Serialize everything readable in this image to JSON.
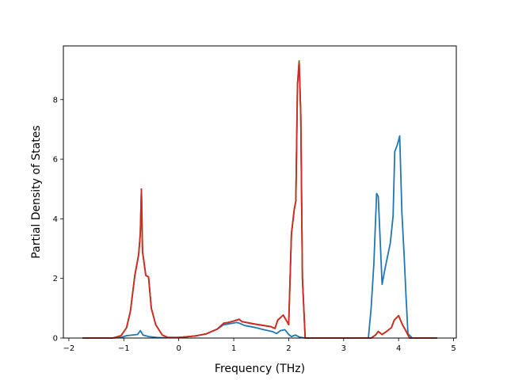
{
  "chart_data": {
    "type": "line",
    "title": "",
    "xlabel": "Frequency (THz)",
    "ylabel": "Partial Density of States",
    "xlim": [
      -2.1,
      5.05
    ],
    "ylim": [
      0,
      9.8
    ],
    "xticks": [
      -2,
      -1,
      0,
      1,
      2,
      3,
      4,
      5
    ],
    "xtick_labels": [
      "−2",
      "−1",
      "0",
      "1",
      "2",
      "3",
      "4",
      "5"
    ],
    "yticks": [
      0,
      2,
      4,
      6,
      8
    ],
    "ytick_labels": [
      "0",
      "2",
      "4",
      "6",
      "8"
    ],
    "grid": false,
    "legend": "none",
    "series": [
      {
        "color": "#1f77b4",
        "points": [
          [
            -1.75,
            0
          ],
          [
            -1.2,
            0
          ],
          [
            -1.05,
            0.02
          ],
          [
            -0.95,
            0.08
          ],
          [
            -0.85,
            0.1
          ],
          [
            -0.75,
            0.12
          ],
          [
            -0.7,
            0.25
          ],
          [
            -0.65,
            0.1
          ],
          [
            -0.55,
            0.05
          ],
          [
            -0.4,
            0.02
          ],
          [
            -0.25,
            0.01
          ],
          [
            0,
            0.02
          ],
          [
            0.3,
            0.07
          ],
          [
            0.5,
            0.14
          ],
          [
            0.7,
            0.3
          ],
          [
            0.82,
            0.45
          ],
          [
            0.9,
            0.47
          ],
          [
            1.05,
            0.52
          ],
          [
            1.1,
            0.5
          ],
          [
            1.2,
            0.42
          ],
          [
            1.4,
            0.35
          ],
          [
            1.55,
            0.28
          ],
          [
            1.7,
            0.22
          ],
          [
            1.78,
            0.15
          ],
          [
            1.85,
            0.25
          ],
          [
            1.93,
            0.28
          ],
          [
            2.0,
            0.12
          ],
          [
            2.05,
            0.05
          ],
          [
            2.12,
            0.1
          ],
          [
            2.2,
            0.03
          ],
          [
            2.3,
            0
          ],
          [
            3.45,
            0
          ],
          [
            3.5,
            1.0
          ],
          [
            3.55,
            2.5
          ],
          [
            3.6,
            4.85
          ],
          [
            3.63,
            4.75
          ],
          [
            3.7,
            1.8
          ],
          [
            3.75,
            2.3
          ],
          [
            3.85,
            3.2
          ],
          [
            3.9,
            4.1
          ],
          [
            3.93,
            6.25
          ],
          [
            3.98,
            6.5
          ],
          [
            4.02,
            6.78
          ],
          [
            4.06,
            4.2
          ],
          [
            4.1,
            2.8
          ],
          [
            4.13,
            1.6
          ],
          [
            4.17,
            0.15
          ],
          [
            4.25,
            0
          ],
          [
            4.7,
            0
          ]
        ]
      },
      {
        "color": "#ff7f0e",
        "points": [
          [
            -1.75,
            0
          ],
          [
            -1.2,
            0
          ],
          [
            -1.05,
            0.08
          ],
          [
            -0.95,
            0.35
          ],
          [
            -0.88,
            0.9
          ],
          [
            -0.8,
            2.1
          ],
          [
            -0.73,
            2.8
          ],
          [
            -0.7,
            3.5
          ],
          [
            -0.68,
            5.0
          ],
          [
            -0.66,
            2.9
          ],
          [
            -0.6,
            2.1
          ],
          [
            -0.55,
            2.05
          ],
          [
            -0.5,
            1.0
          ],
          [
            -0.42,
            0.45
          ],
          [
            -0.3,
            0.1
          ],
          [
            -0.2,
            0.02
          ],
          [
            0,
            0.02
          ],
          [
            0.3,
            0.07
          ],
          [
            0.5,
            0.14
          ],
          [
            0.7,
            0.3
          ],
          [
            0.82,
            0.5
          ],
          [
            0.9,
            0.52
          ],
          [
            1.0,
            0.57
          ],
          [
            1.1,
            0.63
          ],
          [
            1.15,
            0.55
          ],
          [
            1.35,
            0.48
          ],
          [
            1.55,
            0.42
          ],
          [
            1.68,
            0.38
          ],
          [
            1.75,
            0.32
          ],
          [
            1.8,
            0.6
          ],
          [
            1.9,
            0.77
          ],
          [
            1.97,
            0.55
          ],
          [
            2.0,
            0.45
          ],
          [
            2.05,
            3.5
          ],
          [
            2.1,
            4.3
          ],
          [
            2.13,
            4.6
          ],
          [
            2.16,
            8.5
          ],
          [
            2.19,
            9.3
          ],
          [
            2.22,
            7.5
          ],
          [
            2.25,
            2.0
          ],
          [
            2.3,
            0
          ],
          [
            3.5,
            0
          ],
          [
            3.58,
            0.1
          ],
          [
            3.63,
            0.22
          ],
          [
            3.7,
            0.12
          ],
          [
            3.78,
            0.22
          ],
          [
            3.87,
            0.35
          ],
          [
            3.92,
            0.6
          ],
          [
            4.0,
            0.75
          ],
          [
            4.07,
            0.45
          ],
          [
            4.13,
            0.25
          ],
          [
            4.2,
            0
          ],
          [
            4.7,
            0
          ]
        ]
      },
      {
        "color": "#2ca02c",
        "points": [
          [
            -1.75,
            0
          ],
          [
            -1.2,
            0
          ],
          [
            -1.05,
            0.08
          ],
          [
            -0.95,
            0.35
          ],
          [
            -0.88,
            0.9
          ],
          [
            -0.8,
            2.1
          ],
          [
            -0.73,
            2.8
          ],
          [
            -0.7,
            3.5
          ],
          [
            -0.68,
            5.0
          ],
          [
            -0.66,
            2.9
          ],
          [
            -0.6,
            2.1
          ],
          [
            -0.55,
            2.05
          ],
          [
            -0.5,
            1.0
          ],
          [
            -0.42,
            0.45
          ],
          [
            -0.3,
            0.1
          ],
          [
            -0.2,
            0.02
          ],
          [
            0,
            0.02
          ],
          [
            0.3,
            0.07
          ],
          [
            0.5,
            0.14
          ],
          [
            0.7,
            0.3
          ],
          [
            0.82,
            0.5
          ],
          [
            0.9,
            0.52
          ],
          [
            1.0,
            0.57
          ],
          [
            1.1,
            0.63
          ],
          [
            1.15,
            0.55
          ],
          [
            1.35,
            0.48
          ],
          [
            1.55,
            0.42
          ],
          [
            1.68,
            0.38
          ],
          [
            1.75,
            0.32
          ],
          [
            1.8,
            0.6
          ],
          [
            1.9,
            0.77
          ],
          [
            1.97,
            0.55
          ],
          [
            2.0,
            0.45
          ],
          [
            2.05,
            3.5
          ],
          [
            2.1,
            4.3
          ],
          [
            2.13,
            4.6
          ],
          [
            2.16,
            8.5
          ],
          [
            2.19,
            9.3
          ],
          [
            2.22,
            7.5
          ],
          [
            2.25,
            2.0
          ],
          [
            2.3,
            0
          ],
          [
            3.5,
            0
          ],
          [
            3.58,
            0.1
          ],
          [
            3.63,
            0.22
          ],
          [
            3.7,
            0.12
          ],
          [
            3.78,
            0.22
          ],
          [
            3.87,
            0.35
          ],
          [
            3.92,
            0.6
          ],
          [
            4.0,
            0.75
          ],
          [
            4.07,
            0.45
          ],
          [
            4.13,
            0.25
          ],
          [
            4.2,
            0
          ],
          [
            4.7,
            0
          ]
        ]
      },
      {
        "color": "#d62728",
        "points": [
          [
            -1.75,
            0
          ],
          [
            -1.2,
            0
          ],
          [
            -1.05,
            0.08
          ],
          [
            -0.95,
            0.35
          ],
          [
            -0.88,
            0.9
          ],
          [
            -0.8,
            2.1
          ],
          [
            -0.73,
            2.8
          ],
          [
            -0.7,
            3.5
          ],
          [
            -0.68,
            5.0
          ],
          [
            -0.66,
            2.9
          ],
          [
            -0.6,
            2.1
          ],
          [
            -0.55,
            2.05
          ],
          [
            -0.5,
            1.0
          ],
          [
            -0.42,
            0.45
          ],
          [
            -0.3,
            0.1
          ],
          [
            -0.2,
            0.02
          ],
          [
            0,
            0.02
          ],
          [
            0.3,
            0.07
          ],
          [
            0.5,
            0.14
          ],
          [
            0.7,
            0.3
          ],
          [
            0.82,
            0.5
          ],
          [
            0.9,
            0.52
          ],
          [
            1.0,
            0.57
          ],
          [
            1.1,
            0.63
          ],
          [
            1.15,
            0.55
          ],
          [
            1.35,
            0.48
          ],
          [
            1.55,
            0.42
          ],
          [
            1.68,
            0.38
          ],
          [
            1.75,
            0.32
          ],
          [
            1.8,
            0.6
          ],
          [
            1.9,
            0.77
          ],
          [
            1.97,
            0.55
          ],
          [
            2.0,
            0.45
          ],
          [
            2.05,
            3.5
          ],
          [
            2.1,
            4.3
          ],
          [
            2.13,
            4.6
          ],
          [
            2.16,
            8.5
          ],
          [
            2.19,
            9.25
          ],
          [
            2.22,
            7.5
          ],
          [
            2.25,
            2.0
          ],
          [
            2.3,
            0
          ],
          [
            3.5,
            0
          ],
          [
            3.58,
            0.1
          ],
          [
            3.63,
            0.22
          ],
          [
            3.7,
            0.12
          ],
          [
            3.78,
            0.22
          ],
          [
            3.87,
            0.35
          ],
          [
            3.92,
            0.6
          ],
          [
            4.0,
            0.75
          ],
          [
            4.07,
            0.45
          ],
          [
            4.13,
            0.25
          ],
          [
            4.2,
            0
          ],
          [
            4.7,
            0
          ]
        ]
      }
    ]
  }
}
